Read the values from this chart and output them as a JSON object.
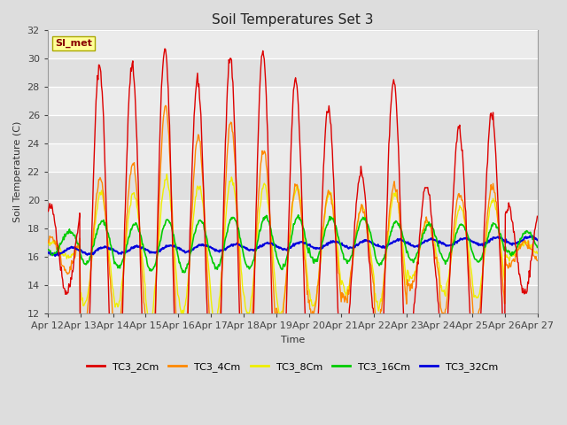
{
  "title": "Soil Temperatures Set 3",
  "xlabel": "Time",
  "ylabel": "Soil Temperature (C)",
  "ylim": [
    12,
    32
  ],
  "series": {
    "TC3_2Cm": {
      "color": "#dd0000",
      "lw": 1.0
    },
    "TC3_4Cm": {
      "color": "#ff8800",
      "lw": 1.0
    },
    "TC3_8Cm": {
      "color": "#eeee00",
      "lw": 1.0
    },
    "TC3_16Cm": {
      "color": "#00cc00",
      "lw": 1.2
    },
    "TC3_32Cm": {
      "color": "#0000dd",
      "lw": 1.5
    }
  },
  "legend_order": [
    "TC3_2Cm",
    "TC3_4Cm",
    "TC3_8Cm",
    "TC3_16Cm",
    "TC3_32Cm"
  ],
  "annotation_text": "SI_met",
  "annotation_color": "#880000",
  "annotation_bg": "#ffff99",
  "bg_color": "#dddddd",
  "plot_bg": "#e8e8e8",
  "grid_color": "#ffffff",
  "yticks": [
    12,
    14,
    16,
    18,
    20,
    22,
    24,
    26,
    28,
    30,
    32
  ],
  "xtick_labels": [
    "Apr 12",
    "Apr 13",
    "Apr 14",
    "Apr 15",
    "Apr 16",
    "Apr 17",
    "Apr 18",
    "Apr 19",
    "Apr 20",
    "Apr 21",
    "Apr 22",
    "Apr 23",
    "Apr 24",
    "Apr 25",
    "Apr 26",
    "Apr 27"
  ],
  "title_fontsize": 11,
  "axis_fontsize": 8,
  "tick_fontsize": 8
}
